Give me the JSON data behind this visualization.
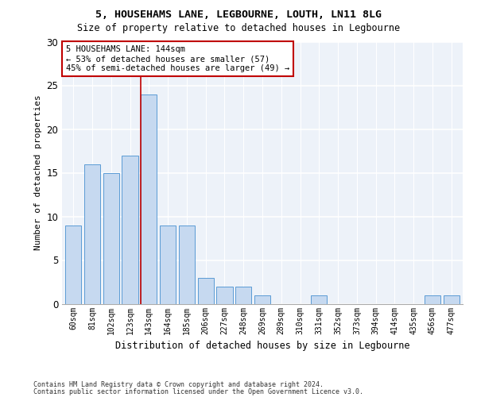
{
  "title1": "5, HOUSEHAMS LANE, LEGBOURNE, LOUTH, LN11 8LG",
  "title2": "Size of property relative to detached houses in Legbourne",
  "xlabel": "Distribution of detached houses by size in Legbourne",
  "ylabel": "Number of detached properties",
  "categories": [
    "60sqm",
    "81sqm",
    "102sqm",
    "123sqm",
    "143sqm",
    "164sqm",
    "185sqm",
    "206sqm",
    "227sqm",
    "248sqm",
    "269sqm",
    "289sqm",
    "310sqm",
    "331sqm",
    "352sqm",
    "373sqm",
    "394sqm",
    "414sqm",
    "435sqm",
    "456sqm",
    "477sqm"
  ],
  "values": [
    9,
    16,
    15,
    17,
    24,
    9,
    9,
    3,
    2,
    2,
    1,
    0,
    0,
    1,
    0,
    0,
    0,
    0,
    0,
    1,
    1
  ],
  "bar_color": "#c6d9f0",
  "bar_edge_color": "#5b9bd5",
  "highlight_index": 4,
  "highlight_line_color": "#c00000",
  "ylim": [
    0,
    30
  ],
  "yticks": [
    0,
    5,
    10,
    15,
    20,
    25,
    30
  ],
  "annotation_box_text": "5 HOUSEHAMS LANE: 144sqm\n← 53% of detached houses are smaller (57)\n45% of semi-detached houses are larger (49) →",
  "annotation_box_color": "#c00000",
  "footer1": "Contains HM Land Registry data © Crown copyright and database right 2024.",
  "footer2": "Contains public sector information licensed under the Open Government Licence v3.0.",
  "background_color": "#edf2f9"
}
